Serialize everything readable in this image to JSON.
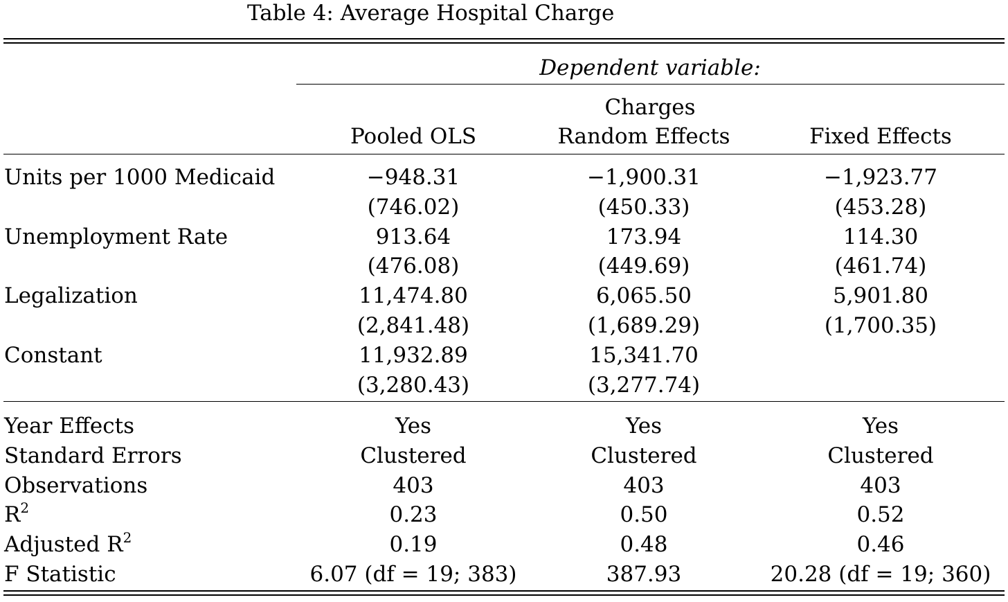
{
  "caption": "Table 4:  Average Hospital Charge",
  "header": {
    "dependent_variable": "Dependent variable:",
    "dependent_name": "Charges",
    "columns": [
      "Pooled OLS",
      "Random Effects",
      "Fixed Effects"
    ]
  },
  "coefficients": [
    {
      "label": "Units per 1000 Medicaid",
      "estimates": [
        "−948.31",
        "−1,900.31",
        "−1,923.77"
      ],
      "std_errors": [
        "(746.02)",
        "(450.33)",
        "(453.28)"
      ]
    },
    {
      "label": "Unemployment Rate",
      "estimates": [
        "913.64",
        "173.94",
        "114.30"
      ],
      "std_errors": [
        "(476.08)",
        "(449.69)",
        "(461.74)"
      ]
    },
    {
      "label": "Legalization",
      "estimates": [
        "11,474.80",
        "6,065.50",
        "5,901.80"
      ],
      "std_errors": [
        "(2,841.48)",
        "(1,689.29)",
        "(1,700.35)"
      ]
    },
    {
      "label": "Constant",
      "estimates": [
        "11,932.89",
        "15,341.70",
        ""
      ],
      "std_errors": [
        "(3,280.43)",
        "(3,277.74)",
        ""
      ]
    }
  ],
  "statistics": [
    {
      "label": "Year Effects",
      "values": [
        "Yes",
        "Yes",
        "Yes"
      ]
    },
    {
      "label": "Standard Errors",
      "values": [
        "Clustered",
        "Clustered",
        "Clustered"
      ]
    },
    {
      "label": "Observations",
      "values": [
        "403",
        "403",
        "403"
      ]
    },
    {
      "label": "R",
      "label_sup": "2",
      "values": [
        "0.23",
        "0.50",
        "0.52"
      ]
    },
    {
      "label": "Adjusted R",
      "label_sup": "2",
      "values": [
        "0.19",
        "0.48",
        "0.46"
      ]
    },
    {
      "label": "F Statistic",
      "values": [
        "6.07 (df = 19; 383)",
        "387.93",
        "20.28 (df = 19; 360)"
      ]
    }
  ]
}
